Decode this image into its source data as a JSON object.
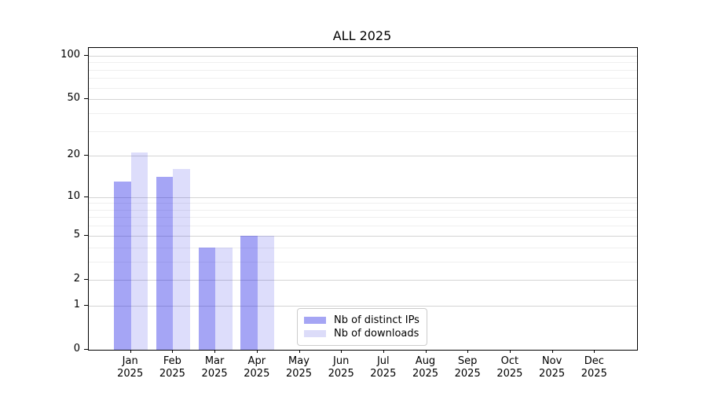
{
  "chart_data": {
    "type": "bar",
    "title": "ALL 2025",
    "months": [
      "Jan",
      "Feb",
      "Mar",
      "Apr",
      "May",
      "Jun",
      "Jul",
      "Aug",
      "Sep",
      "Oct",
      "Nov",
      "Dec"
    ],
    "year": "2025",
    "series": [
      {
        "name": "Nb of distinct IPs",
        "legend_color": "#a5a5f4",
        "fill": "rgba(20,20,230,0.385)",
        "values": [
          13,
          14,
          4,
          5,
          0,
          0,
          0,
          0,
          0,
          0,
          0,
          0
        ]
      },
      {
        "name": "Nb of downloads",
        "legend_color": "#dcdcf9",
        "fill": "rgba(20,20,230,0.145)",
        "values": [
          21,
          16,
          4,
          5,
          0,
          0,
          0,
          0,
          0,
          0,
          0,
          0
        ]
      }
    ],
    "y_axis": {
      "scale": "log1p",
      "tick_labels": [
        "100",
        "50",
        "20",
        "10",
        "5",
        "2",
        "1",
        "0"
      ],
      "tick_values": [
        100,
        50,
        20,
        10,
        5,
        2,
        1,
        0
      ],
      "minor_gridlines": [
        3,
        4,
        6,
        7,
        8,
        9,
        30,
        40,
        60,
        70,
        80,
        90
      ],
      "ylim": [
        0,
        113
      ]
    },
    "grid": "on",
    "legend_position": "lower-center-left",
    "colors": {
      "spine": "#000000",
      "grid_major": "#d4d4d4",
      "grid_minor": "#efefef",
      "background": "#ffffff"
    }
  }
}
